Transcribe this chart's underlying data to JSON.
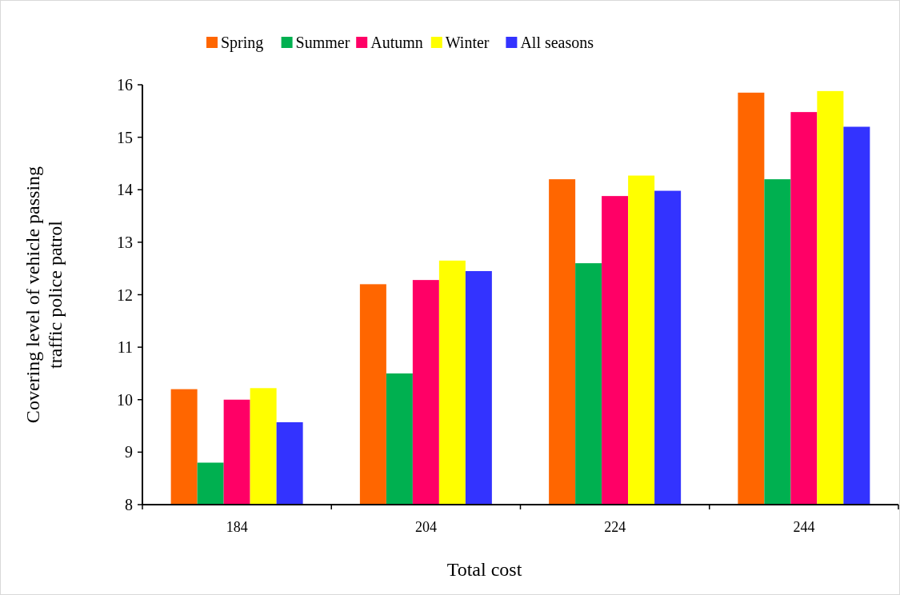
{
  "chart_data": {
    "type": "bar",
    "xlabel": "Total cost",
    "ylabel": "Covering level of vehicle passing\ntraffic police patrol",
    "categories": [
      "184",
      "204",
      "224",
      "244"
    ],
    "series": [
      {
        "name": "Spring",
        "color": "#ff6600",
        "values": [
          10.2,
          12.2,
          14.2,
          15.85
        ]
      },
      {
        "name": "Summer",
        "color": "#00b050",
        "values": [
          8.8,
          10.5,
          12.6,
          14.2
        ]
      },
      {
        "name": "Autumn",
        "color": "#ff0066",
        "values": [
          10.0,
          12.28,
          13.88,
          15.48
        ]
      },
      {
        "name": "Winter",
        "color": "#ffff00",
        "values": [
          10.22,
          12.65,
          14.27,
          15.88
        ]
      },
      {
        "name": "All seasons",
        "color": "#3333ff",
        "values": [
          9.57,
          12.45,
          13.98,
          15.2
        ]
      }
    ],
    "ylim": [
      8,
      16
    ],
    "yticks": [
      8,
      9,
      10,
      11,
      12,
      13,
      14,
      15,
      16
    ],
    "grid": false,
    "legend": "top"
  }
}
